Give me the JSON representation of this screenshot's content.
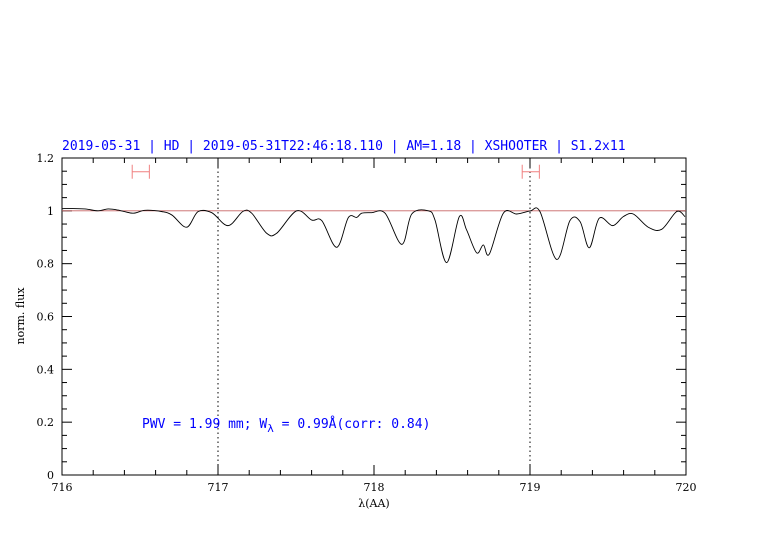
{
  "chart_data": {
    "type": "line",
    "title": "2019-05-31 | HD | 2019-05-31T22:46:18.110 | AM=1.18 | XSHOOTER | S1.2x11",
    "xlabel": "λ(AA)",
    "ylabel": "norm. flux",
    "xlim": [
      716,
      720
    ],
    "ylim": [
      0,
      1.2
    ],
    "x_ticks": [
      "716",
      "717",
      "718",
      "719",
      "720"
    ],
    "y_ticks": [
      "0",
      "0.2",
      "0.4",
      "0.6",
      "0.8",
      "1",
      "1.2"
    ],
    "grid": false,
    "reference_line": 1.0,
    "vertical_markers": [
      717,
      719
    ],
    "error_bars": [
      {
        "x_min": 716.45,
        "x_max": 716.56,
        "y": 1.148
      },
      {
        "x_min": 718.95,
        "x_max": 719.06,
        "y": 1.148
      }
    ],
    "annotation": {
      "prefix": "PWV = 1.99 mm; W",
      "subscript": "λ",
      "suffix": " = 0.99Å(corr: 0.84)"
    },
    "colors": {
      "spectrum": "#000000",
      "reference": "#c86464",
      "errorbar": "#f08080",
      "text": "#0000ff"
    },
    "series": [
      {
        "x": [
          716.0,
          716.03,
          716.147,
          716.231,
          716.295,
          716.359,
          716.455,
          716.532,
          716.641,
          716.705,
          716.799,
          716.872,
          716.96,
          717.064,
          717.16,
          717.216,
          717.312,
          717.376,
          717.504,
          717.601,
          717.665,
          717.761,
          717.835,
          717.889,
          717.921,
          717.985,
          718.071,
          718.178,
          718.242,
          718.348,
          718.391,
          718.466,
          718.547,
          718.594,
          718.658,
          718.701,
          718.739,
          718.829,
          718.915,
          719.0,
          719.064,
          719.171,
          719.256,
          719.321,
          719.38,
          719.444,
          719.53,
          719.598,
          719.662,
          719.758,
          719.844,
          719.94,
          719.994
        ],
        "y": [
          1.008,
          1.009,
          1.007,
          1.0,
          1.007,
          1.003,
          0.991,
          1.002,
          0.997,
          0.984,
          0.938,
          0.997,
          0.993,
          0.944,
          0.998,
          0.991,
          0.915,
          0.915,
          1.0,
          0.965,
          0.963,
          0.862,
          0.974,
          0.975,
          0.991,
          0.993,
          0.991,
          0.873,
          0.988,
          1.0,
          0.965,
          0.804,
          0.978,
          0.927,
          0.841,
          0.871,
          0.836,
          0.991,
          0.988,
          0.999,
          0.997,
          0.816,
          0.963,
          0.959,
          0.86,
          0.972,
          0.944,
          0.978,
          0.988,
          0.938,
          0.93,
          0.997,
          0.978
        ]
      }
    ]
  }
}
